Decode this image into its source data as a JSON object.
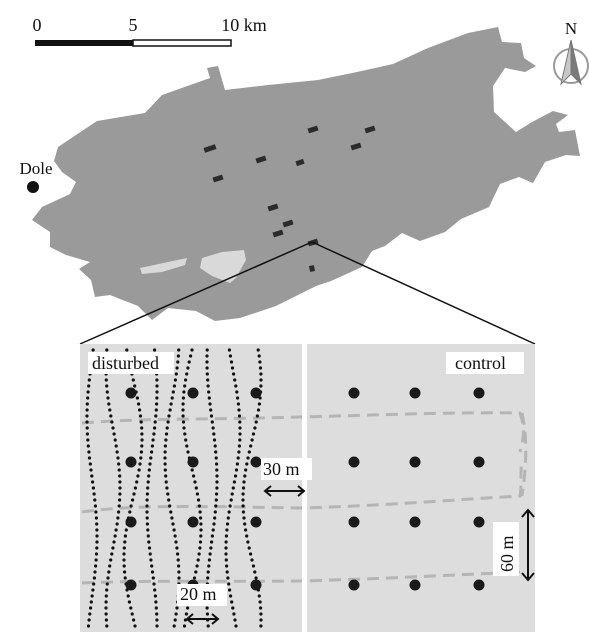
{
  "scale_bar": {
    "ticks": [
      "0",
      "5",
      "10 km"
    ]
  },
  "north_arrow": {
    "label": "N",
    "icon": "north-arrow-icon"
  },
  "town": {
    "name": "Dole"
  },
  "forest_map": {
    "forest_color": "#9a9a9a",
    "clearing_color": "#d9d9d9",
    "plot_marker_color": "#2b2b2b",
    "plot_count": 12
  },
  "study_plot": {
    "background_color": "#dddddd",
    "divider_color": "#ffffff",
    "disturbed_label": "disturbed",
    "control_label": "control",
    "buffer_label": "30 m",
    "row_spacing_label": "60 m",
    "track_spacing_label": "20 m",
    "grid_rows": 4,
    "grid_cols_per_side": 3,
    "point_color": "#1a1a1a",
    "dashed_line_color": "#b5b5b5"
  }
}
